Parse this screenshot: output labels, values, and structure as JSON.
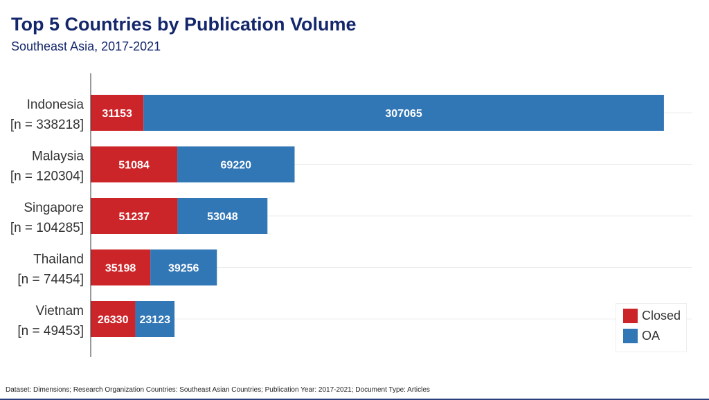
{
  "chart_data": {
    "type": "bar",
    "orientation": "horizontal",
    "stacked": true,
    "title": "Top 5 Countries by Publication Volume",
    "subtitle": "Southeast Asia, 2017-2021",
    "categories": [
      "Indonesia",
      "Malaysia",
      "Singapore",
      "Thailand",
      "Vietnam"
    ],
    "category_counts": [
      "[n = 338218]",
      "[n = 120304]",
      "[n = 104285]",
      "[n = 74454]",
      "[n = 49453]"
    ],
    "series": [
      {
        "name": "Closed",
        "color": "#cc2529",
        "values": [
          31153,
          51084,
          51237,
          35198,
          26330
        ]
      },
      {
        "name": "OA",
        "color": "#3176b5",
        "values": [
          307065,
          69220,
          53048,
          39256,
          23123
        ]
      }
    ],
    "xlim": [
      0,
      355000
    ],
    "grid": true,
    "legend_position": "bottom-right",
    "footnote": "Dataset: Dimensions; Research Organization Countries: Southeast Asian Countries; Publication Year: 2017-2021; Document Type: Articles"
  }
}
